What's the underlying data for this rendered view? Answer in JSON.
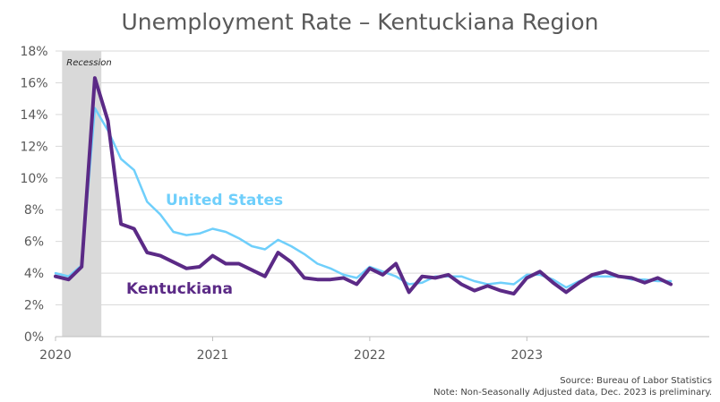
{
  "chart_data": {
    "type": "line",
    "title": "Unemployment Rate – Kentuckiana Region",
    "xlabel": "",
    "ylabel": "",
    "x_start": "2020-01",
    "x_tick_labels": [
      "2020",
      "2021",
      "2022",
      "2023"
    ],
    "y_tick_labels": [
      "0%",
      "2%",
      "4%",
      "6%",
      "8%",
      "10%",
      "12%",
      "14%",
      "16%",
      "18%"
    ],
    "ylim": [
      0,
      18
    ],
    "grid": "horizontal",
    "recession": {
      "label": "Recession",
      "start": "2020-02",
      "end": "2020-04"
    },
    "series": [
      {
        "name": "United States",
        "color": "#6FCFFB",
        "values": [
          4.0,
          3.8,
          4.5,
          14.4,
          13.0,
          11.2,
          10.5,
          8.5,
          7.7,
          6.6,
          6.4,
          6.5,
          6.8,
          6.6,
          6.2,
          5.7,
          5.5,
          6.1,
          5.7,
          5.2,
          4.6,
          4.3,
          3.9,
          3.7,
          4.4,
          4.1,
          3.8,
          3.3,
          3.4,
          3.8,
          3.8,
          3.8,
          3.5,
          3.3,
          3.4,
          3.3,
          3.9,
          3.9,
          3.6,
          3.1,
          3.5,
          3.8,
          3.8,
          3.8,
          3.6,
          3.6,
          3.5,
          3.5
        ]
      },
      {
        "name": "Kentuckiana",
        "color": "#5B2A86",
        "values": [
          3.8,
          3.6,
          4.4,
          16.3,
          13.6,
          7.1,
          6.8,
          5.3,
          5.1,
          4.7,
          4.3,
          4.4,
          5.1,
          4.6,
          4.6,
          4.2,
          3.8,
          5.3,
          4.7,
          3.7,
          3.6,
          3.6,
          3.7,
          3.3,
          4.3,
          3.9,
          4.6,
          2.8,
          3.8,
          3.7,
          3.9,
          3.3,
          2.9,
          3.2,
          2.9,
          2.7,
          3.7,
          4.1,
          3.4,
          2.8,
          3.4,
          3.9,
          4.1,
          3.8,
          3.7,
          3.4,
          3.7,
          3.3
        ]
      }
    ]
  },
  "notes": {
    "source": "Source: Bureau of Labor Statistics",
    "note": "Note: Non-Seasonally Adjusted data, Dec. 2023 is preliminary."
  }
}
